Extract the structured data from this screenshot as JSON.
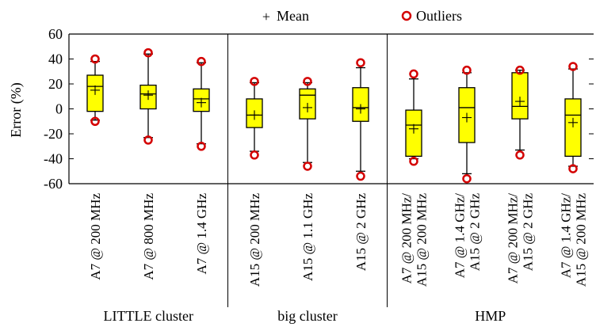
{
  "chart_data": {
    "type": "box",
    "ylabel": "Error (%)",
    "ylim": [
      -60,
      60
    ],
    "yticks": [
      -60,
      -40,
      -20,
      0,
      20,
      40,
      60
    ],
    "legend": {
      "position": "top",
      "mean_label": "Mean",
      "outlier_label": "Outliers"
    },
    "box_color": "#ffff00",
    "outlier_color": "#d40000",
    "groups": [
      {
        "label": "LITTLE cluster",
        "count": 3
      },
      {
        "label": "big cluster",
        "count": 3
      },
      {
        "label": "HMP",
        "count": 4
      }
    ],
    "boxes": [
      {
        "label": [
          "A7 @ 200 MHz"
        ],
        "q1": -2,
        "median": 18,
        "q3": 27,
        "whisker_low": -9,
        "whisker_high": 38,
        "mean": 15,
        "outliers": [
          40,
          -10
        ]
      },
      {
        "label": [
          "A7 @ 800 MHz"
        ],
        "q1": 0,
        "median": 12,
        "q3": 19,
        "whisker_low": -23,
        "whisker_high": 44,
        "mean": 11,
        "outliers": [
          45,
          -25
        ]
      },
      {
        "label": [
          "A7 @ 1.4 GHz"
        ],
        "q1": -2,
        "median": 8,
        "q3": 16,
        "whisker_low": -28,
        "whisker_high": 37,
        "mean": 5,
        "outliers": [
          38,
          -30
        ]
      },
      {
        "label": [
          "A15 @ 200 MHz"
        ],
        "q1": -15,
        "median": -5,
        "q3": 8,
        "whisker_low": -34,
        "whisker_high": 21,
        "mean": -5,
        "outliers": [
          22,
          -37
        ]
      },
      {
        "label": [
          "A15 @ 1.1 GHz"
        ],
        "q1": -8,
        "median": 11,
        "q3": 16,
        "whisker_low": -43,
        "whisker_high": 21,
        "mean": 1,
        "outliers": [
          22,
          -46
        ]
      },
      {
        "label": [
          "A15 @ 2 GHz"
        ],
        "q1": -10,
        "median": 1,
        "q3": 17,
        "whisker_low": -50,
        "whisker_high": 33,
        "mean": 0,
        "outliers": [
          37,
          -54
        ]
      },
      {
        "label": [
          "A7 @ 200 MHz/",
          "A15 @ 200 MHz"
        ],
        "q1": -38,
        "median": -13,
        "q3": -1,
        "whisker_low": -40,
        "whisker_high": 24,
        "mean": -16,
        "outliers": [
          28,
          -42
        ]
      },
      {
        "label": [
          "A7 @ 1.4 GHz/",
          "A15 @ 2 GHz"
        ],
        "q1": -27,
        "median": 1,
        "q3": 17,
        "whisker_low": -52,
        "whisker_high": 29,
        "mean": -7,
        "outliers": [
          31,
          -56
        ]
      },
      {
        "label": [
          "A7 @ 200 MHz/",
          "A15 @ 2 GHz"
        ],
        "q1": -8,
        "median": 2,
        "q3": 29,
        "whisker_low": -33,
        "whisker_high": 31,
        "mean": 6,
        "outliers": [
          31,
          -37
        ]
      },
      {
        "label": [
          "A7 @ 1.4 GHz/",
          "A15 @ 200 MHz"
        ],
        "q1": -38,
        "median": -5,
        "q3": 8,
        "whisker_low": -46,
        "whisker_high": 32,
        "mean": -11,
        "outliers": [
          34,
          -48
        ]
      }
    ]
  }
}
